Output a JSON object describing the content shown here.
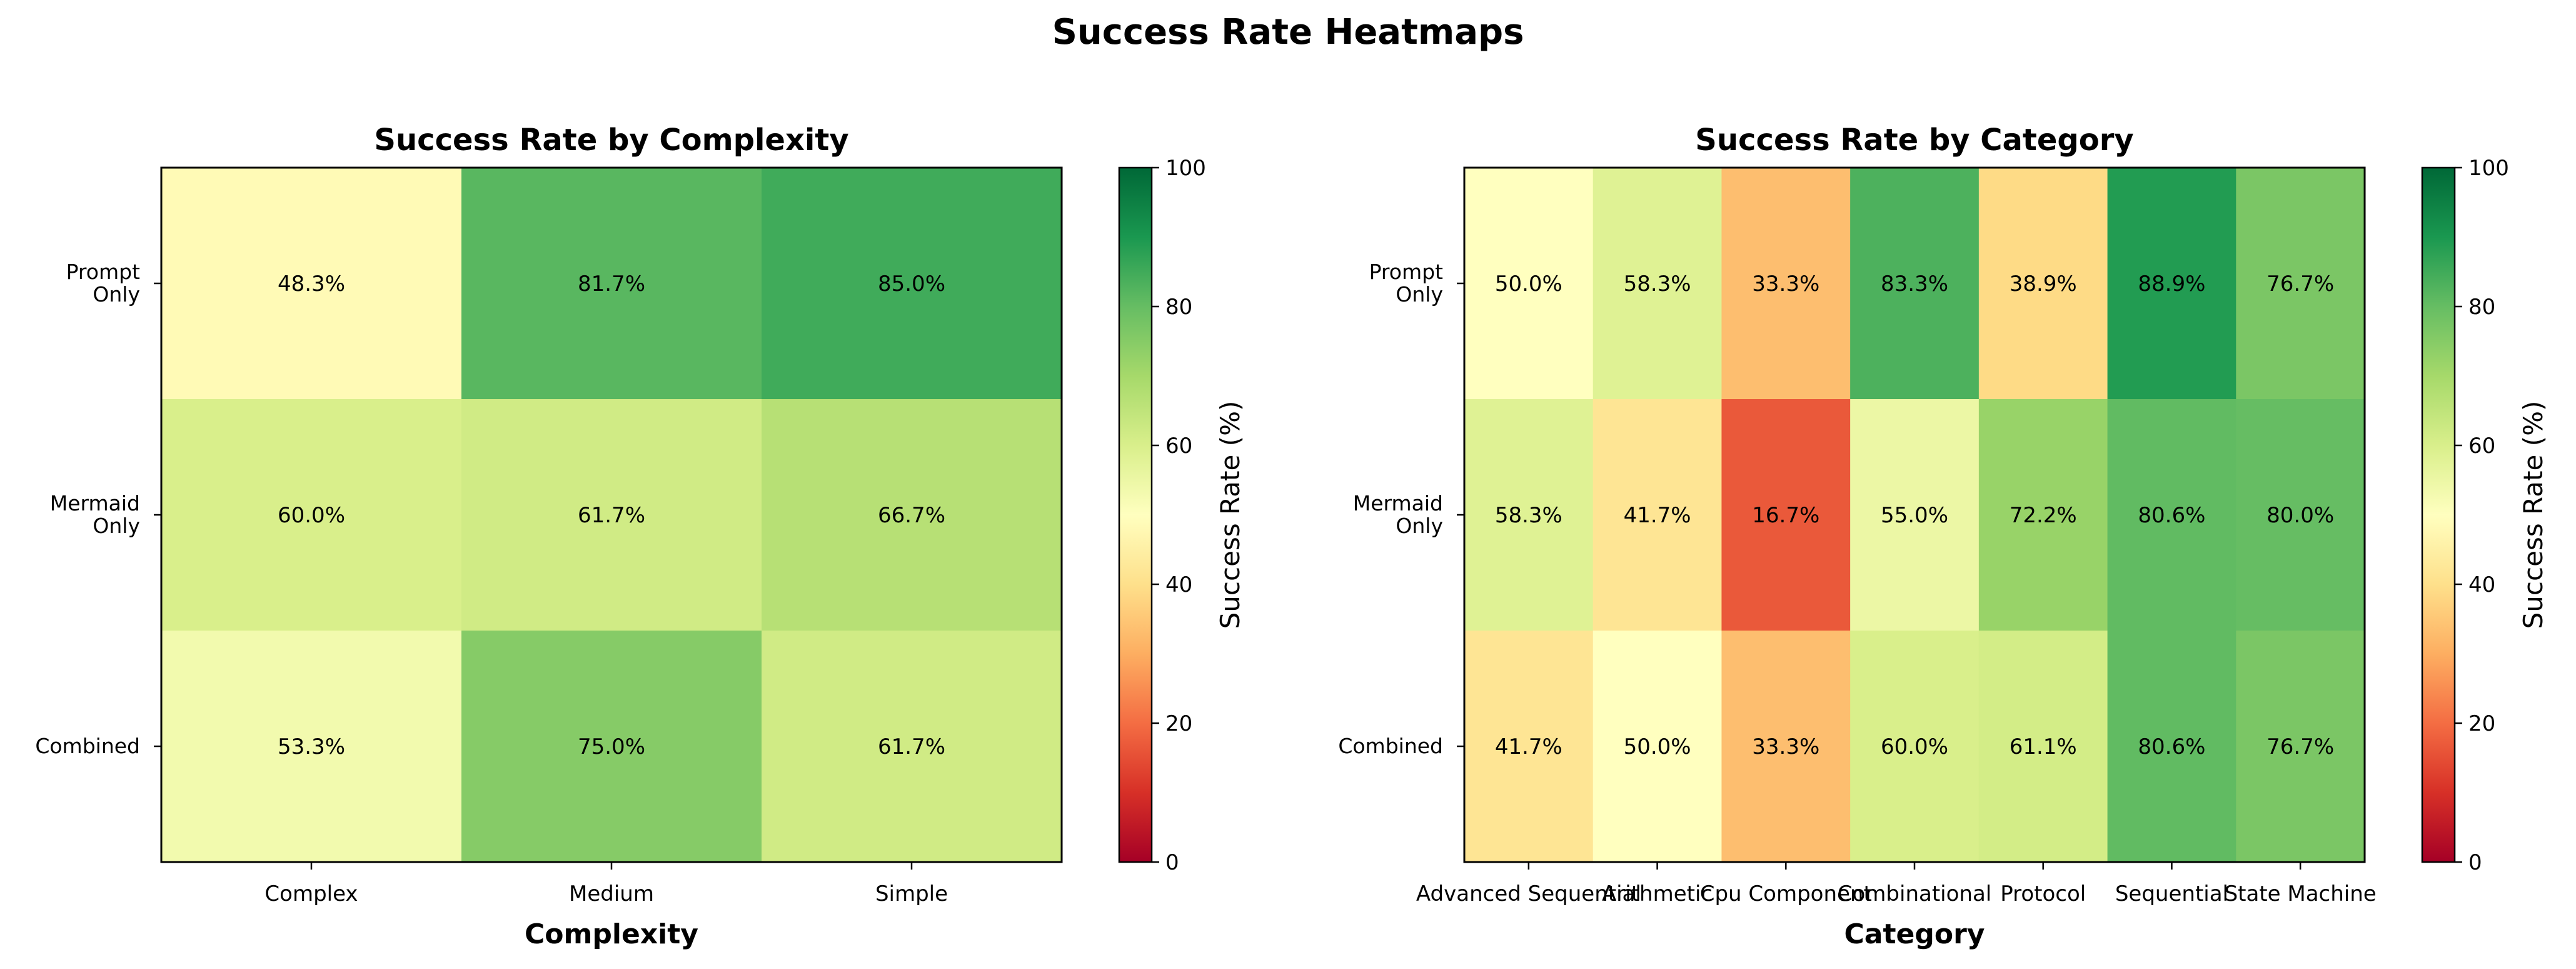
{
  "figure": {
    "suptitle": "Success Rate Heatmaps"
  },
  "chart_data": [
    {
      "type": "heatmap",
      "title": "Success Rate by Complexity",
      "xlabel": "Complexity",
      "ylabel": "",
      "x": [
        "Complex",
        "Medium",
        "Simple"
      ],
      "y": [
        "Prompt Only",
        "Mermaid Only",
        "Combined"
      ],
      "values": [
        [
          48.3,
          81.7,
          85.0
        ],
        [
          60.0,
          61.7,
          66.7
        ],
        [
          53.3,
          75.0,
          61.7
        ]
      ],
      "value_format": "%",
      "colormap": "RdYlGn",
      "vmin": 0,
      "vmax": 100,
      "colorbar": {
        "label": "Success Rate (%)",
        "ticks": [
          0,
          20,
          40,
          60,
          80,
          100
        ]
      }
    },
    {
      "type": "heatmap",
      "title": "Success Rate by Category",
      "xlabel": "Category",
      "ylabel": "",
      "x": [
        "Advanced Sequential",
        "Arithmetic",
        "Cpu Component",
        "Combinational",
        "Protocol",
        "Sequential",
        "State Machine"
      ],
      "y": [
        "Prompt Only",
        "Mermaid Only",
        "Combined"
      ],
      "values": [
        [
          50.0,
          58.3,
          33.3,
          83.3,
          38.9,
          88.9,
          76.7
        ],
        [
          58.3,
          41.7,
          16.7,
          55.0,
          72.2,
          80.6,
          80.0
        ],
        [
          41.7,
          50.0,
          33.3,
          60.0,
          61.1,
          80.6,
          76.7
        ]
      ],
      "value_format": "%",
      "colormap": "RdYlGn",
      "vmin": 0,
      "vmax": 100,
      "colorbar": {
        "label": "Success Rate (%)",
        "ticks": [
          0,
          20,
          40,
          60,
          80,
          100
        ]
      }
    }
  ]
}
